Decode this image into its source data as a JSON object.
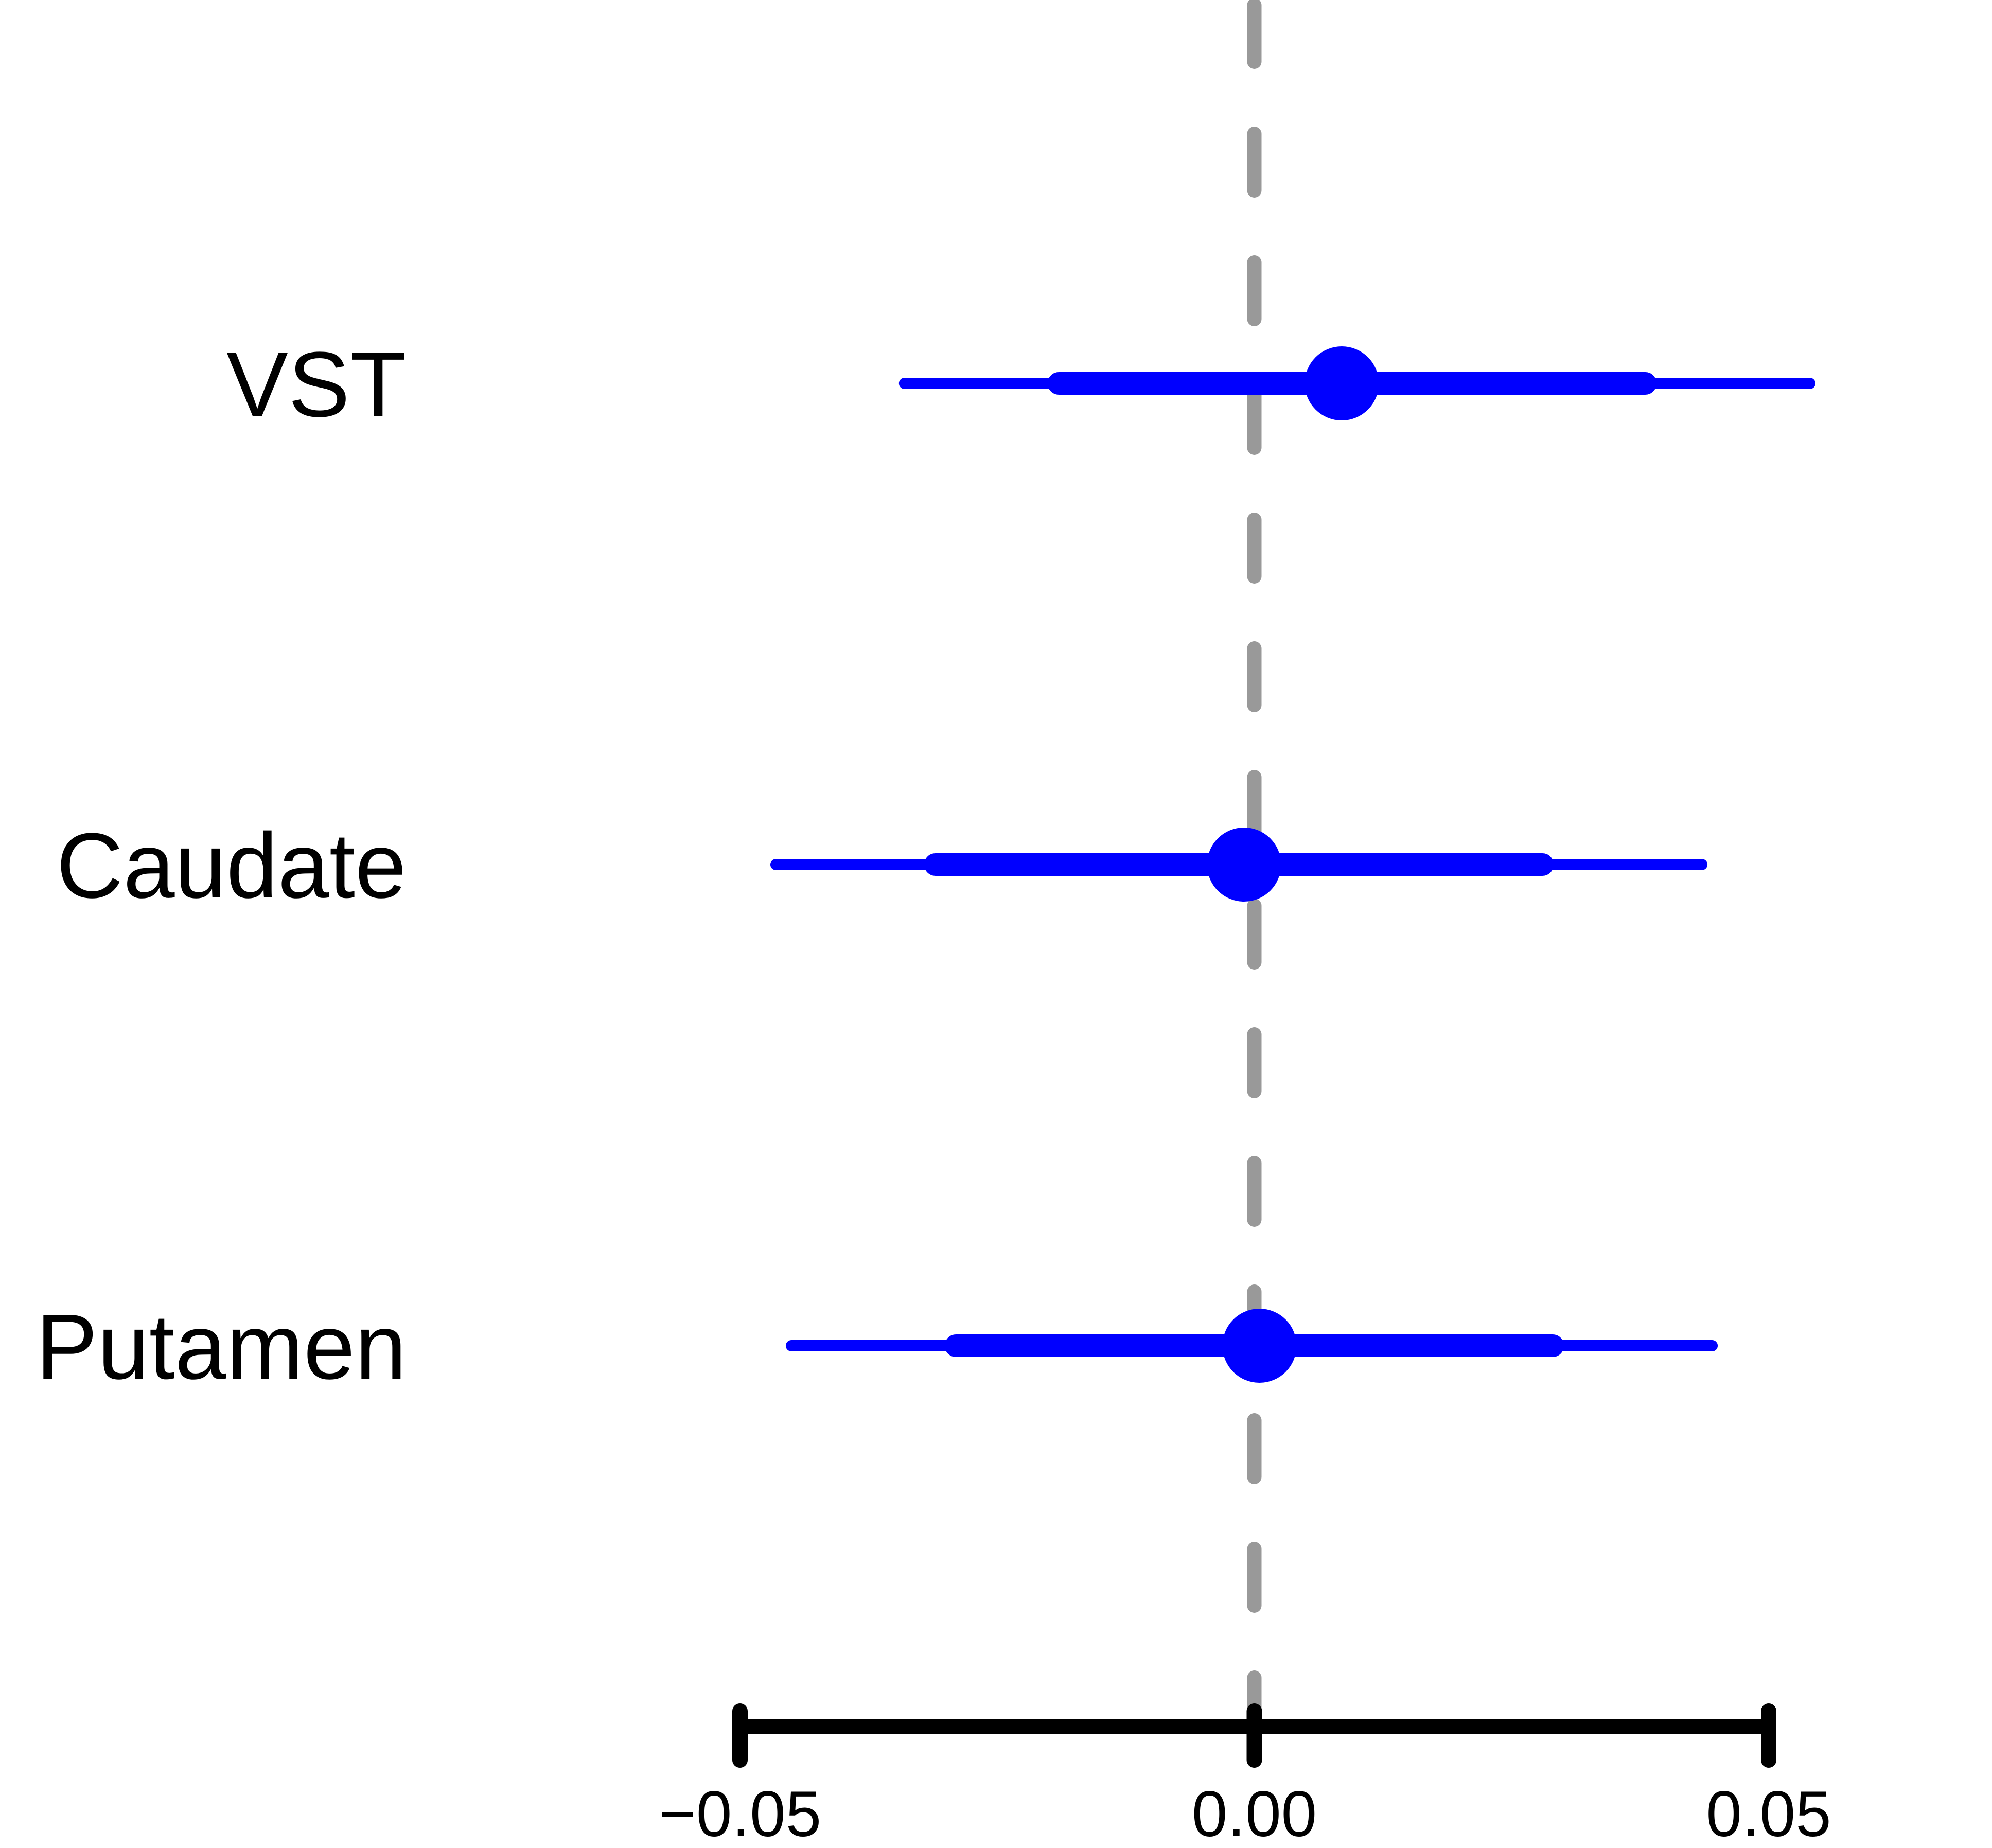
{
  "chart_data": {
    "type": "forest",
    "categories": [
      "VST",
      "Caudate",
      "Putamen"
    ],
    "series": [
      {
        "estimate": [
          0.0085,
          -0.001,
          0.0005
        ],
        "inner_interval": [
          [
            -0.019,
            0.038
          ],
          [
            -0.031,
            0.028
          ],
          [
            -0.029,
            0.029
          ]
        ],
        "outer_interval": [
          [
            -0.034,
            0.054
          ],
          [
            -0.0465,
            0.0435
          ],
          [
            -0.045,
            0.0445
          ]
        ]
      }
    ],
    "xlim": [
      -0.05,
      0.05
    ],
    "x_ticks": [
      -0.05,
      0.0,
      0.05
    ],
    "x_tick_labels": [
      "−0.05",
      "0.00",
      "0.05"
    ],
    "reference_line_x": 0.0,
    "grid": false,
    "colors": {
      "interval": "#0000ff",
      "reference_line": "#999999",
      "axis": "#000000"
    }
  }
}
